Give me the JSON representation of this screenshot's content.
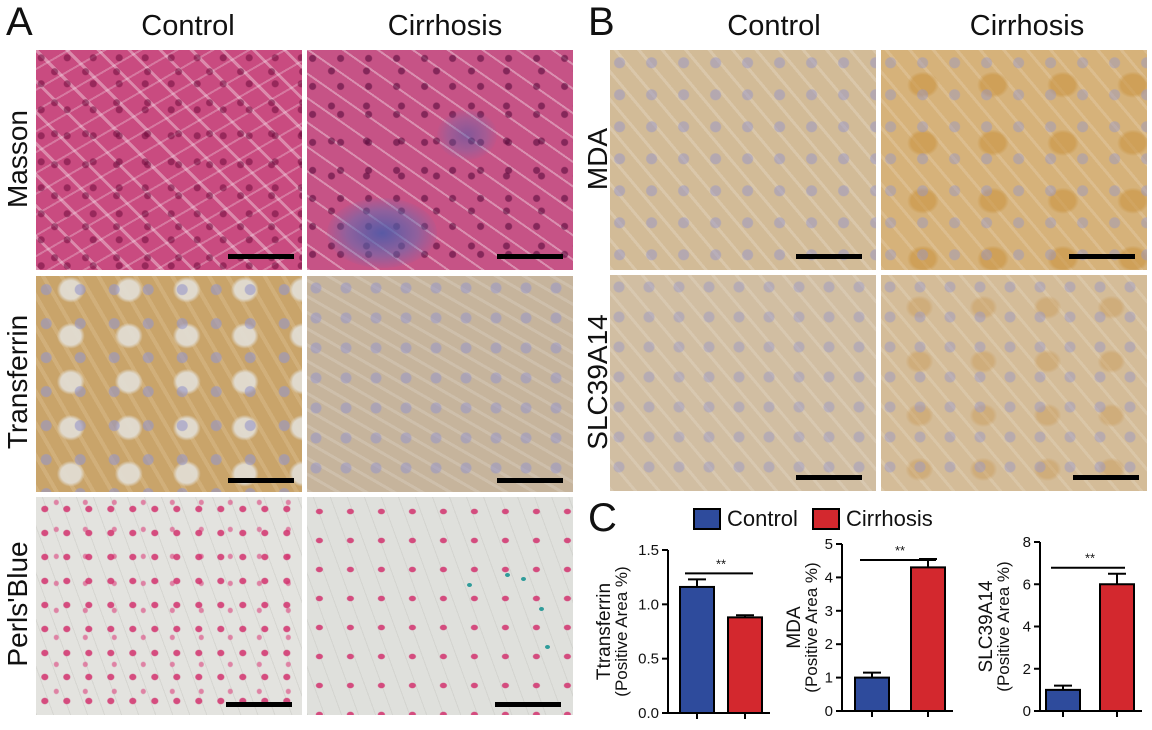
{
  "panel_a": {
    "letter": "A",
    "columns": [
      "Control",
      "Cirrhosis"
    ],
    "rows": [
      "Masson",
      "Transferrin",
      "Perls'Blue"
    ]
  },
  "panel_b": {
    "letter": "B",
    "columns": [
      "Control",
      "Cirrhosis"
    ],
    "rows": [
      "MDA",
      "SLC39A14"
    ]
  },
  "panel_c": {
    "letter": "C",
    "legend": [
      {
        "label": "Control",
        "color": "#2e4b9c"
      },
      {
        "label": "Cirrhosis",
        "color": "#d3282e"
      }
    ]
  },
  "colors": {
    "control": "#2e4b9c",
    "cirrhosis": "#d3282e",
    "masson": "#c94b80",
    "dab": "#c9a46a"
  },
  "chart_data": [
    {
      "type": "bar",
      "categories": [
        "Control",
        "Cirrhosis"
      ],
      "values": [
        1.16,
        0.88
      ],
      "errors": [
        0.07,
        0.02
      ],
      "ylabel": "Ttransferrin",
      "ylabel2": "(Positive Area %)",
      "ylim": [
        0,
        1.5
      ],
      "yticks": [
        "0.0",
        "0.5",
        "1.0",
        "1.5"
      ],
      "significance": "**"
    },
    {
      "type": "bar",
      "categories": [
        "Control",
        "Cirrhosis"
      ],
      "values": [
        1.0,
        4.3
      ],
      "errors": [
        0.15,
        0.25
      ],
      "ylabel": "MDA",
      "ylabel2": "(Positive Area %)",
      "ylim": [
        0,
        5
      ],
      "yticks": [
        "0",
        "1",
        "2",
        "3",
        "4",
        "5"
      ],
      "significance": "**"
    },
    {
      "type": "bar",
      "categories": [
        "Control",
        "Cirrhosis"
      ],
      "values": [
        1.0,
        6.0
      ],
      "errors": [
        0.2,
        0.5
      ],
      "ylabel": "SLC39A14",
      "ylabel2": "(Positive Area %)",
      "ylim": [
        0,
        8
      ],
      "yticks": [
        "0",
        "2",
        "4",
        "6",
        "8"
      ],
      "significance": "**"
    }
  ]
}
